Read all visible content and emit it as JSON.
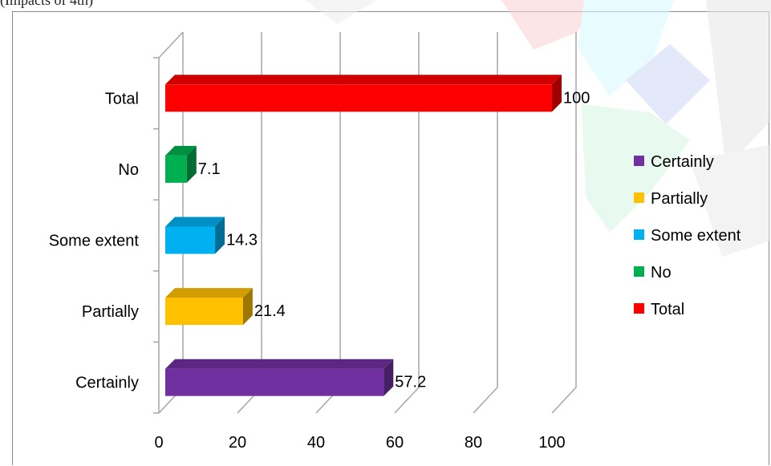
{
  "caption": "(Impacts of 4th)",
  "chart_data": {
    "type": "bar",
    "orientation": "horizontal",
    "style": "3d",
    "categories": [
      "Certainly",
      "Partially",
      "Some extent",
      "No",
      "Total"
    ],
    "values": [
      57.2,
      21.4,
      14.3,
      7.1,
      100
    ],
    "value_labels": [
      "57.2",
      "21.4",
      "14.3",
      "7.1",
      "100"
    ],
    "colors": [
      "#7030a0",
      "#ffc000",
      "#00b0f0",
      "#00b050",
      "#ff0000"
    ],
    "xlim": [
      0,
      100
    ],
    "xticks": [
      "0",
      "20",
      "40",
      "60",
      "80",
      "100"
    ],
    "title": "",
    "xlabel": "",
    "ylabel": "",
    "grid": true,
    "legend": {
      "position": "right",
      "entries": [
        "Certainly",
        "Partially",
        "Some extent",
        "No",
        "Total"
      ]
    }
  }
}
